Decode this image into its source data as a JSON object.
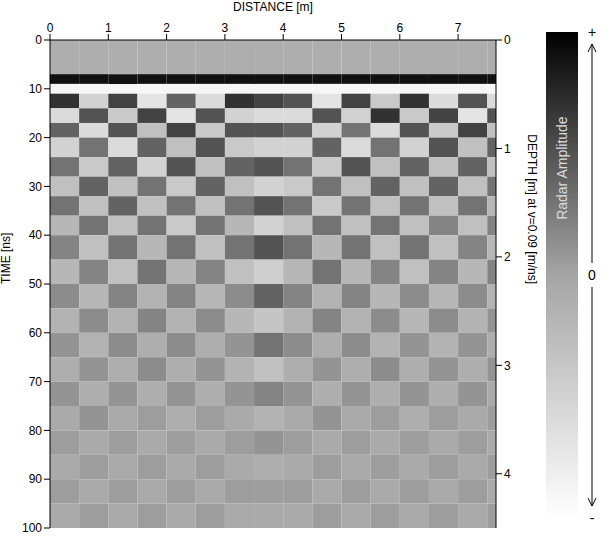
{
  "chart_data": {
    "type": "heatmap",
    "xlabel": "DISTANCE [m]",
    "ylabel": "TIME [ns]",
    "y2label": "DEPTH [m] at v=0.09 [m/ns]",
    "xlim": [
      0,
      7.65
    ],
    "xticks": [
      0,
      1,
      2,
      3,
      4,
      5,
      6,
      7
    ],
    "ylim": [
      0,
      100
    ],
    "yticks": [
      0,
      10,
      20,
      30,
      40,
      50,
      60,
      70,
      80,
      90,
      100
    ],
    "y2lim": [
      0,
      4.5
    ],
    "y2ticks": [
      0,
      1,
      2,
      3,
      4
    ],
    "grid": false,
    "x_edges": [
      0,
      0.5,
      1,
      1.5,
      2,
      2.5,
      3,
      3.5,
      4,
      4.5,
      5,
      5.5,
      6,
      6.5,
      7,
      7.5,
      7.65
    ],
    "y_edges": [
      0,
      7,
      9,
      11,
      14,
      17,
      20,
      24,
      28,
      32,
      36,
      40,
      45,
      50,
      55,
      60,
      65,
      70,
      75,
      80,
      85,
      90,
      95,
      100
    ],
    "cells": [
      [
        -0.1,
        -0.1,
        -0.1,
        -0.1,
        -0.1,
        -0.1,
        -0.1,
        -0.1,
        -0.1,
        -0.1,
        -0.1,
        -0.1,
        -0.1,
        -0.1,
        -0.1,
        -0.1
      ],
      [
        0.9,
        0.9,
        0.9,
        0.9,
        0.9,
        0.9,
        0.9,
        0.9,
        0.9,
        0.9,
        0.9,
        0.9,
        0.9,
        0.9,
        0.9,
        0.9
      ],
      [
        -0.9,
        -0.9,
        -0.9,
        -0.9,
        -0.9,
        -0.9,
        -0.9,
        -0.9,
        -0.9,
        -0.9,
        -0.9,
        -0.9,
        -0.9,
        -0.9,
        -0.9,
        -0.9
      ],
      [
        0.7,
        -0.5,
        0.6,
        -0.7,
        0.4,
        -0.6,
        0.7,
        0.6,
        0.5,
        -0.7,
        0.6,
        -0.4,
        0.7,
        -0.6,
        0.5,
        -0.6
      ],
      [
        -0.6,
        0.5,
        -0.4,
        0.6,
        -0.7,
        0.5,
        -0.5,
        -0.6,
        -0.6,
        0.5,
        -0.5,
        0.7,
        -0.4,
        0.6,
        -0.7,
        0.5
      ],
      [
        0.4,
        -0.6,
        0.5,
        -0.3,
        0.6,
        -0.4,
        0.5,
        0.5,
        0.4,
        -0.5,
        0.3,
        -0.6,
        0.5,
        -0.4,
        0.6,
        -0.3
      ],
      [
        -0.5,
        0.3,
        -0.6,
        0.4,
        -0.3,
        0.5,
        -0.4,
        -0.5,
        -0.5,
        0.4,
        -0.6,
        0.3,
        -0.5,
        0.5,
        -0.3,
        0.4
      ],
      [
        0.3,
        -0.4,
        0.4,
        -0.5,
        0.5,
        -0.3,
        0.4,
        0.5,
        0.3,
        -0.4,
        0.5,
        -0.3,
        0.4,
        -0.3,
        0.4,
        -0.3
      ],
      [
        -0.3,
        0.4,
        -0.3,
        0.3,
        -0.4,
        0.4,
        -0.3,
        -0.5,
        -0.4,
        0.3,
        -0.3,
        0.4,
        -0.3,
        0.4,
        -0.3,
        0.3
      ],
      [
        0.3,
        -0.3,
        0.4,
        -0.3,
        0.3,
        -0.3,
        0.3,
        0.5,
        0.3,
        -0.4,
        0.3,
        -0.3,
        0.3,
        -0.3,
        0.3,
        -0.2
      ],
      [
        -0.2,
        0.3,
        -0.3,
        0.3,
        -0.4,
        0.3,
        -0.2,
        -0.5,
        -0.3,
        0.3,
        -0.3,
        0.3,
        -0.3,
        0.2,
        -0.3,
        0.2
      ],
      [
        0.2,
        -0.3,
        0.3,
        -0.2,
        0.3,
        -0.3,
        0.3,
        0.5,
        0.3,
        -0.2,
        0.3,
        -0.3,
        0.3,
        -0.3,
        0.2,
        -0.2
      ],
      [
        -0.2,
        0.2,
        -0.3,
        0.3,
        -0.2,
        0.2,
        -0.3,
        -0.45,
        -0.2,
        0.3,
        -0.2,
        0.2,
        -0.3,
        0.2,
        -0.2,
        0.2
      ],
      [
        0.15,
        -0.2,
        0.2,
        -0.15,
        0.2,
        -0.2,
        0.15,
        0.4,
        0.2,
        -0.15,
        0.2,
        -0.2,
        0.15,
        -0.2,
        0.15,
        -0.15
      ],
      [
        -0.15,
        0.15,
        -0.15,
        0.2,
        -0.15,
        0.15,
        -0.2,
        -0.35,
        -0.15,
        0.2,
        -0.15,
        0.15,
        -0.2,
        0.15,
        -0.15,
        0.1
      ],
      [
        0.1,
        -0.15,
        0.15,
        -0.1,
        0.15,
        -0.1,
        0.1,
        0.3,
        0.15,
        -0.1,
        0.15,
        -0.15,
        0.1,
        -0.15,
        0.1,
        -0.1
      ],
      [
        -0.1,
        0.1,
        -0.1,
        0.15,
        -0.1,
        0.1,
        -0.15,
        -0.3,
        -0.1,
        0.1,
        -0.1,
        0.15,
        -0.1,
        0.1,
        -0.1,
        0.1
      ],
      [
        0.1,
        -0.1,
        0.1,
        -0.1,
        0.1,
        -0.1,
        0.1,
        0.2,
        0.1,
        -0.1,
        0.1,
        -0.1,
        0.1,
        -0.1,
        0.1,
        -0.05
      ],
      [
        -0.05,
        0.1,
        -0.05,
        0.05,
        -0.1,
        0.05,
        -0.05,
        -0.15,
        -0.05,
        0.1,
        -0.05,
        0.05,
        -0.1,
        0.05,
        -0.05,
        0.05
      ],
      [
        0.05,
        -0.05,
        0.05,
        -0.05,
        0.05,
        -0.05,
        0.05,
        0.1,
        0.05,
        -0.05,
        0.05,
        -0.05,
        0.05,
        -0.05,
        0.05,
        -0.05
      ],
      [
        -0.05,
        0.05,
        -0.05,
        0.05,
        -0.05,
        0.05,
        -0.05,
        -0.1,
        -0.05,
        0.05,
        -0.05,
        0.05,
        -0.05,
        0.05,
        -0.05,
        0.05
      ],
      [
        0.05,
        -0.05,
        0.05,
        -0.05,
        0.05,
        -0.05,
        0.05,
        0.05,
        0.05,
        -0.05,
        0.05,
        -0.05,
        0.05,
        -0.05,
        0.05,
        -0.05
      ],
      [
        -0.05,
        0.05,
        -0.05,
        0.05,
        -0.05,
        0.05,
        -0.05,
        -0.05,
        -0.05,
        0.05,
        -0.05,
        0.05,
        -0.05,
        0.05,
        -0.05,
        0.05
      ]
    ],
    "colorbar": {
      "label": "Radar Amplitude",
      "range": [
        -1,
        1
      ],
      "ticks": [
        {
          "value": 1,
          "label": "+"
        },
        {
          "value": 0,
          "label": "0"
        },
        {
          "value": -1,
          "label": "-"
        }
      ]
    }
  }
}
